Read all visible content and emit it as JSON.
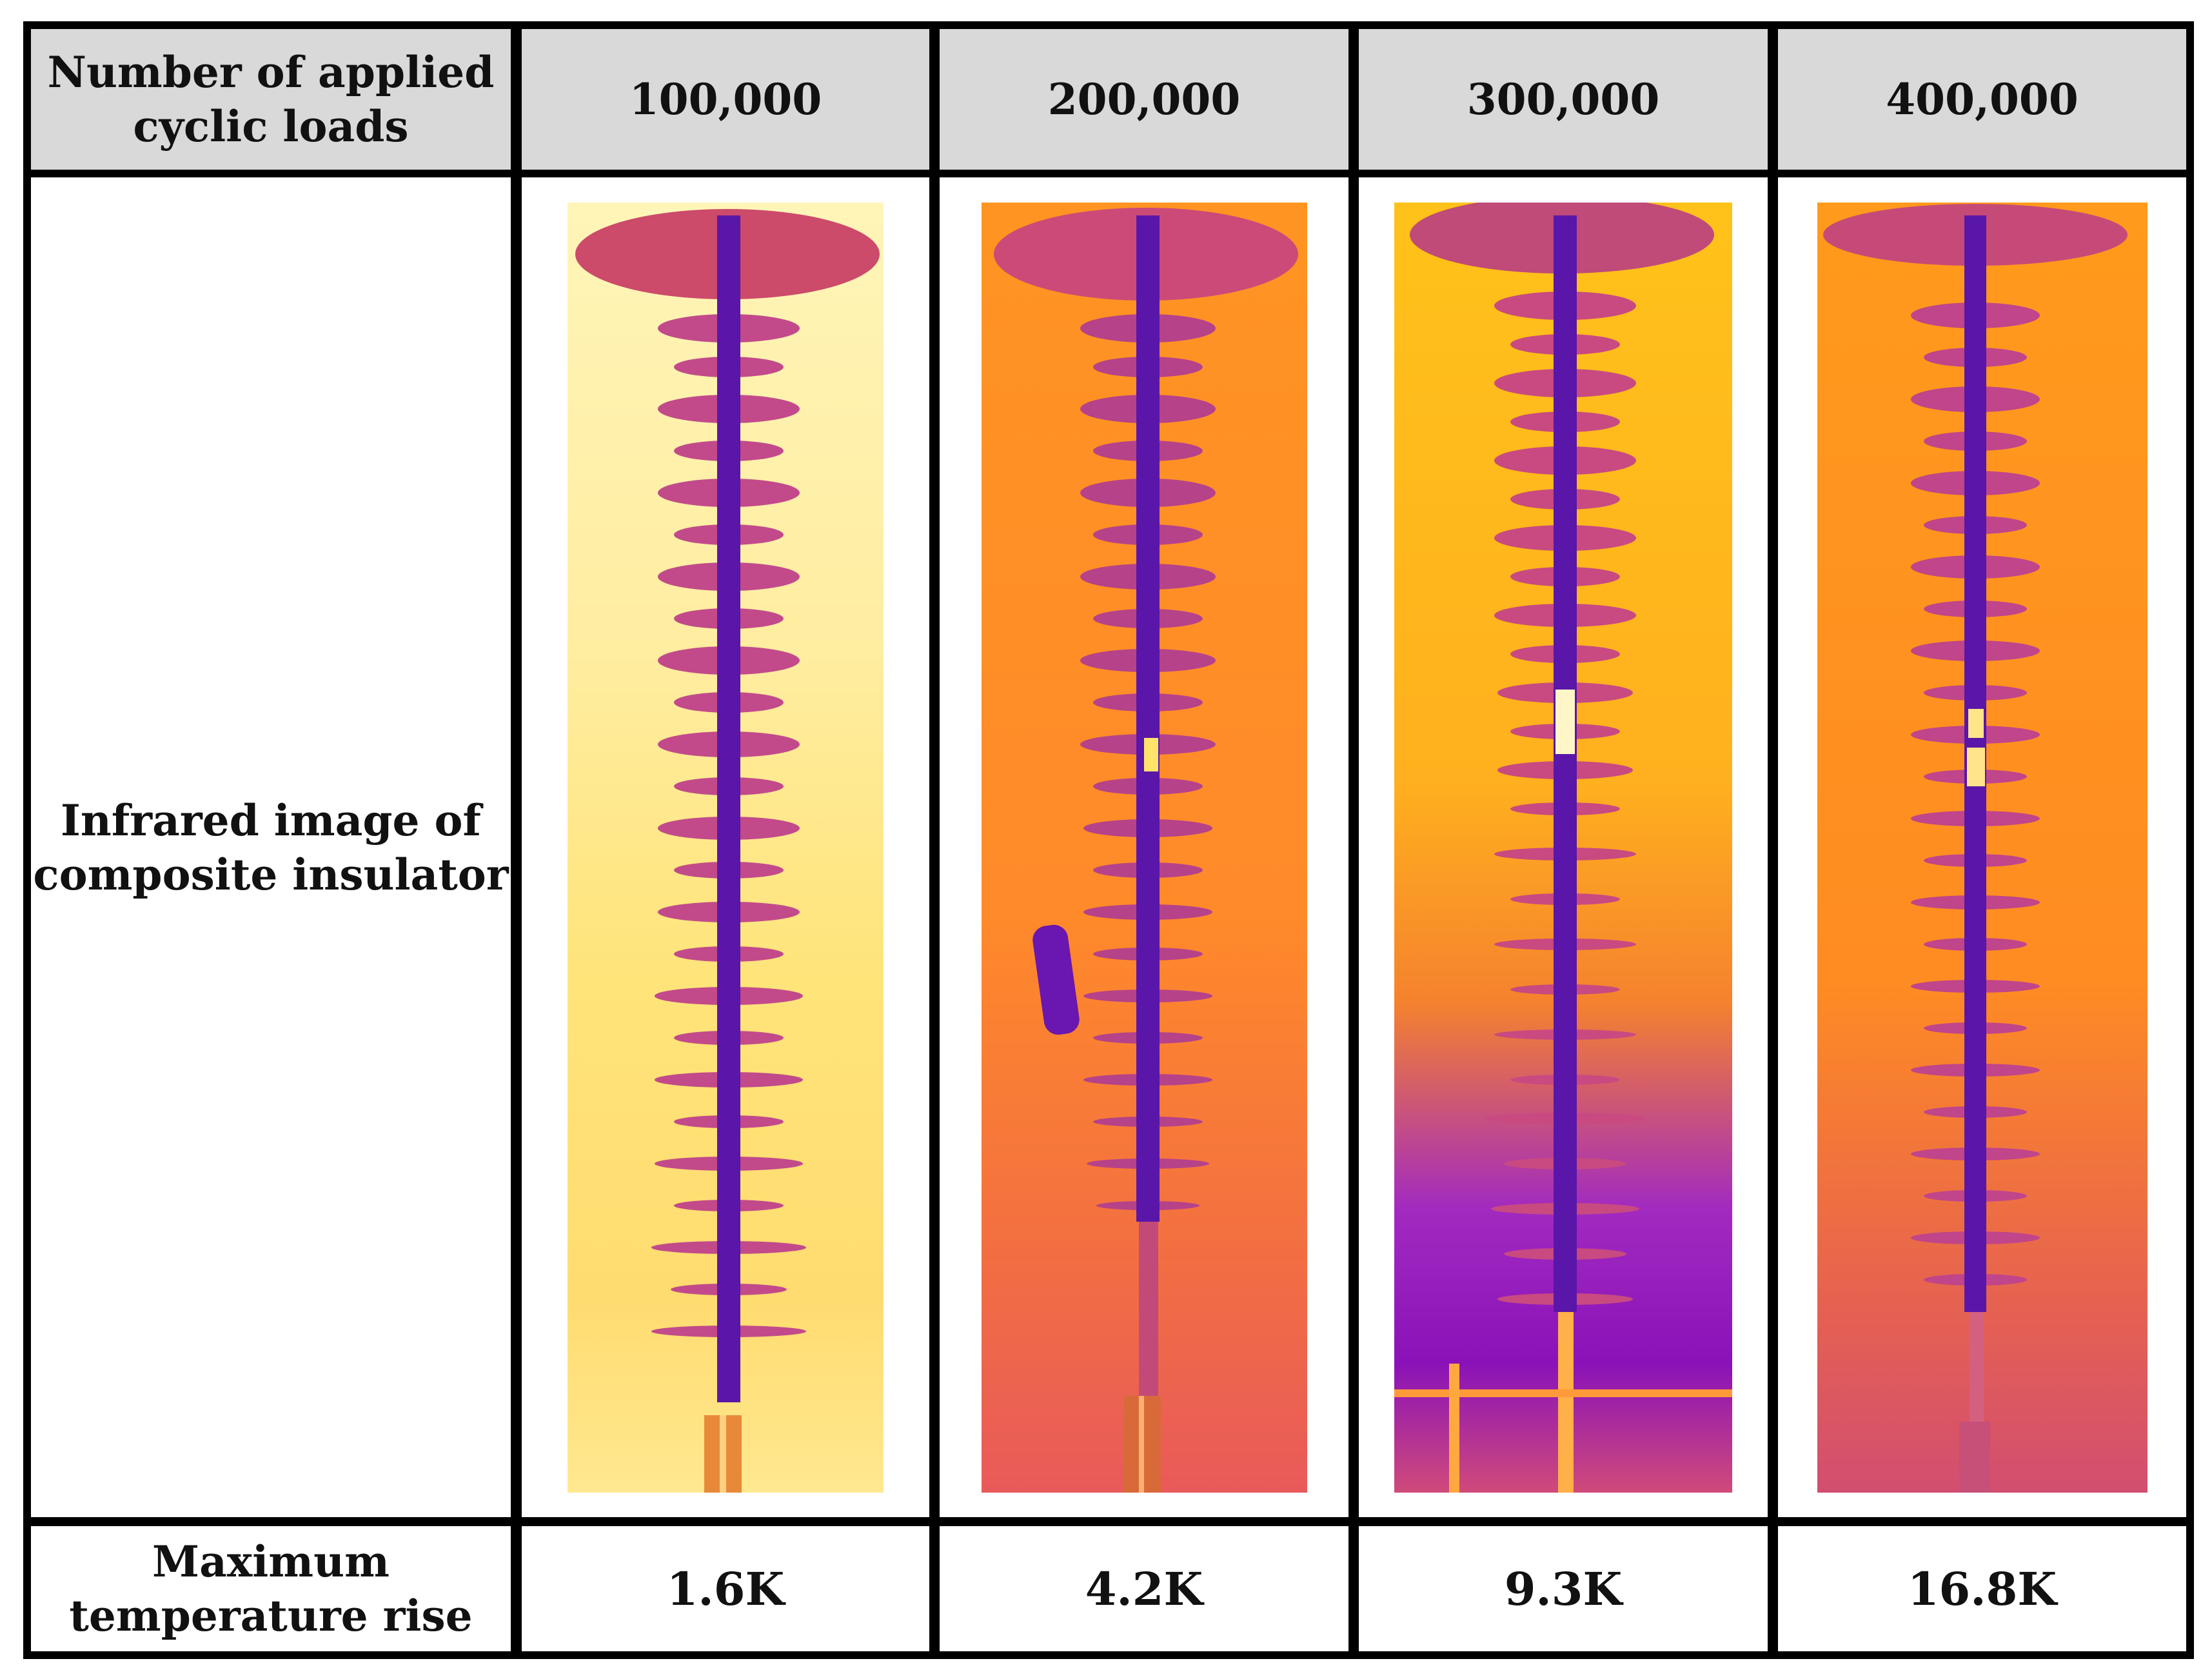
{
  "table": {
    "header": {
      "label_line1": "Number of applied",
      "label_line2": "cyclic loads",
      "columns": [
        "100,000",
        "200,000",
        "300,000",
        "400,000"
      ]
    },
    "rows": {
      "image_label_line1": "Infrared image of",
      "image_label_line2": "composite insulator",
      "temp_label_line1": "Maximum",
      "temp_label_line2": "temperature rise",
      "temperature_rise": [
        "1.6K",
        "4.2K",
        "9.3K",
        "16.8K"
      ]
    }
  },
  "colors": {
    "header_bg": "#d9d9d9",
    "border": "#000000",
    "ir_hot_white": "#fffbe0",
    "ir_yellow": "#ffe25a",
    "ir_orange": "#ff9a1c",
    "ir_magenta": "#d0407a",
    "ir_purple": "#6a10b0",
    "ir_dark_purple": "#3a0880"
  }
}
